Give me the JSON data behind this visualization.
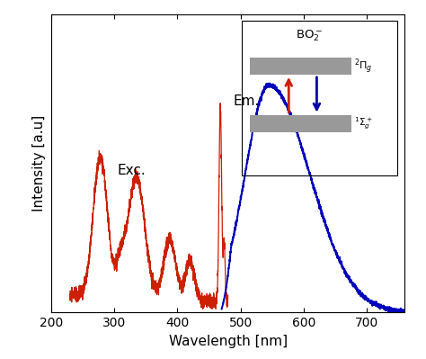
{
  "xlabel": "Wavelength [nm]",
  "ylabel": "Intensity [a.u]",
  "xlim": [
    200,
    760
  ],
  "ylim": [
    0,
    1.05
  ],
  "exc_color": "#CC2000",
  "em_color": "#0000BB",
  "bg_color": "#ffffff",
  "exc_label": "Exc.",
  "em_label": "Em.",
  "inset_bar_color": "#999999",
  "arrow_up_color": "#CC2000",
  "arrow_down_color": "#0000AA",
  "tick_fontsize": 10,
  "label_fontsize": 11
}
